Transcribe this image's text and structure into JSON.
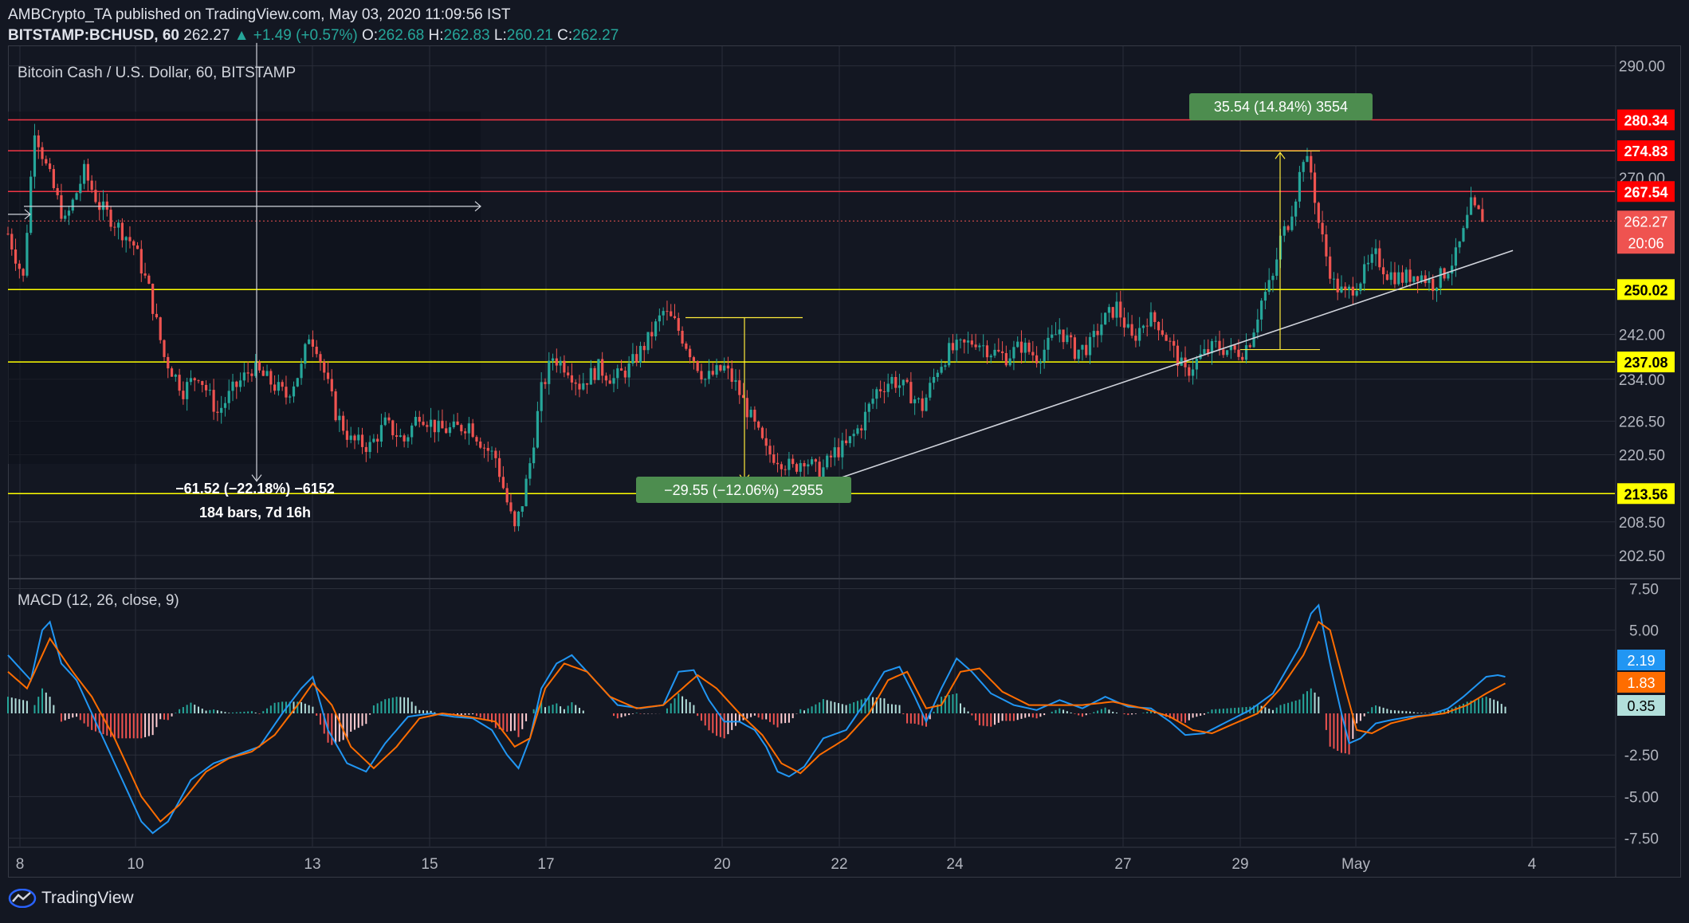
{
  "header": {
    "author": "AMBCrypto_TA",
    "published_text": "published on TradingView.com, May 03, 2020 11:09:56 IST",
    "symbol": "BITSTAMP:BCHUSD, 60",
    "last": "262.27",
    "change": "▲ +1.49 (+0.57%)",
    "o_label": "O:",
    "o_val": "262.68",
    "h_label": "H:",
    "h_val": "262.83",
    "l_label": "L:",
    "l_val": "260.21",
    "c_label": "C:",
    "c_val": "262.27"
  },
  "footer": {
    "brand": "TradingView"
  },
  "colors": {
    "background": "#131722",
    "up": "#26a69a",
    "down": "#ef5350",
    "resistance": "#f23645",
    "support": "#ffff00",
    "macd": "#2196f3",
    "signal": "#ff6d00",
    "measure_green": "#4d8d4f"
  },
  "chart_data": {
    "type": "candlestick",
    "title": "Bitcoin Cash / U.S. Dollar, 60, BITSTAMP",
    "price_axis": {
      "ticks": [
        "290.00",
        "274.83",
        "270.00",
        "250.02",
        "242.00",
        "234.00",
        "226.50",
        "220.50",
        "208.50",
        "202.50"
      ],
      "range": [
        198.5,
        293.5
      ]
    },
    "x_axis": {
      "ticks": [
        "8",
        "10",
        "13",
        "15",
        "17",
        "20",
        "22",
        "24",
        "27",
        "29",
        "May",
        "4"
      ]
    },
    "horizontal_levels": [
      {
        "value": 280.34,
        "label": "280.34",
        "kind": "resistance"
      },
      {
        "value": 274.83,
        "label": "274.83",
        "kind": "resistance"
      },
      {
        "value": 267.54,
        "label": "267.54",
        "kind": "resistance"
      },
      {
        "value": 250.02,
        "label": "250.02",
        "kind": "support"
      },
      {
        "value": 237.08,
        "label": "237.08",
        "kind": "support"
      },
      {
        "value": 213.56,
        "label": "213.56",
        "kind": "support"
      }
    ],
    "last_price": {
      "value": 262.27,
      "label": "262.27",
      "countdown": "20:06"
    },
    "close_series_approx": [
      [
        0,
        260
      ],
      [
        4,
        252
      ],
      [
        7,
        279
      ],
      [
        10,
        272
      ],
      [
        15,
        262
      ],
      [
        20,
        271
      ],
      [
        24,
        265
      ],
      [
        28,
        262
      ],
      [
        33,
        258
      ],
      [
        37,
        250
      ],
      [
        41,
        238
      ],
      [
        46,
        232
      ],
      [
        50,
        235
      ],
      [
        55,
        228
      ],
      [
        59,
        232
      ],
      [
        64,
        236
      ],
      [
        68,
        234
      ],
      [
        73,
        231
      ],
      [
        77,
        236
      ],
      [
        79,
        242
      ],
      [
        81,
        240
      ],
      [
        86,
        228
      ],
      [
        90,
        223
      ],
      [
        95,
        222
      ],
      [
        99,
        226
      ],
      [
        104,
        223
      ],
      [
        108,
        228
      ],
      [
        113,
        225
      ],
      [
        117,
        225
      ],
      [
        121,
        226
      ],
      [
        125,
        222
      ],
      [
        128,
        220
      ],
      [
        131,
        212
      ],
      [
        133,
        207
      ],
      [
        135,
        212
      ],
      [
        137,
        219
      ],
      [
        140,
        232
      ],
      [
        143,
        238
      ],
      [
        147,
        236
      ],
      [
        150,
        233
      ],
      [
        155,
        236
      ],
      [
        159,
        234
      ],
      [
        163,
        236
      ],
      [
        168,
        241
      ],
      [
        172,
        246
      ],
      [
        175,
        244
      ],
      [
        179,
        239
      ],
      [
        183,
        234
      ],
      [
        188,
        236
      ],
      [
        191,
        233
      ],
      [
        195,
        227
      ],
      [
        199,
        221
      ],
      [
        202,
        220
      ],
      [
        206,
        218
      ],
      [
        209,
        220
      ],
      [
        213,
        217
      ],
      [
        217,
        221
      ],
      [
        220,
        222
      ],
      [
        224,
        226
      ],
      [
        228,
        232
      ],
      [
        232,
        234
      ],
      [
        236,
        232
      ],
      [
        240,
        229
      ],
      [
        244,
        236
      ],
      [
        247,
        239
      ],
      [
        251,
        240
      ],
      [
        254,
        241
      ],
      [
        258,
        239
      ],
      [
        262,
        238
      ],
      [
        266,
        240
      ],
      [
        270,
        238
      ],
      [
        273,
        240
      ],
      [
        276,
        243
      ],
      [
        280,
        239
      ],
      [
        284,
        240
      ],
      [
        287,
        244
      ],
      [
        291,
        247
      ],
      [
        295,
        241
      ],
      [
        299,
        245
      ],
      [
        302,
        244
      ],
      [
        306,
        239
      ],
      [
        309,
        235
      ],
      [
        313,
        238
      ],
      [
        317,
        240
      ],
      [
        321,
        239
      ],
      [
        324,
        239
      ],
      [
        326,
        241
      ],
      [
        329,
        248
      ],
      [
        332,
        252
      ],
      [
        334,
        259
      ],
      [
        336,
        262
      ],
      [
        338,
        267
      ],
      [
        340,
        274
      ],
      [
        342,
        271
      ],
      [
        344,
        262
      ],
      [
        346,
        256
      ],
      [
        348,
        251
      ],
      [
        351,
        249
      ],
      [
        355,
        252
      ],
      [
        359,
        256
      ],
      [
        362,
        253
      ],
      [
        366,
        252
      ],
      [
        370,
        253
      ],
      [
        374,
        251
      ],
      [
        377,
        253
      ],
      [
        380,
        256
      ],
      [
        382,
        260
      ],
      [
        384,
        265
      ],
      [
        385,
        264
      ],
      [
        387,
        263
      ]
    ],
    "trend_line": {
      "from": [
        206,
        213.5
      ],
      "to": [
        395,
        257
      ]
    },
    "measurements": [
      {
        "label": "−61.52 (−22.18%) −6152",
        "sub": "184 bars, 7d 16h",
        "from": 277.0,
        "to": 215.5
      },
      {
        "label": "−29.55 (−12.06%) −2955",
        "from": 245.0,
        "to": 215.5
      },
      {
        "label": "35.54 (14.84%) 3554",
        "from": 239.3,
        "to": 274.8
      }
    ],
    "macd": {
      "title": "MACD (12, 26, close, 9)",
      "ticks": [
        "7.50",
        "5.00",
        "-2.50",
        "-5.00",
        "-7.50"
      ],
      "range": [
        -8.0,
        8.0
      ],
      "labels": {
        "macd": "2.19",
        "signal": "1.83",
        "hist": "0.35"
      },
      "macd_line": [
        [
          0,
          3.5
        ],
        [
          6,
          2
        ],
        [
          9,
          5
        ],
        [
          11,
          5.5
        ],
        [
          14,
          3
        ],
        [
          18,
          2
        ],
        [
          24,
          -1
        ],
        [
          30,
          -4
        ],
        [
          35,
          -6.5
        ],
        [
          38,
          -7.2
        ],
        [
          42,
          -6.5
        ],
        [
          48,
          -4
        ],
        [
          54,
          -3
        ],
        [
          60,
          -2.5
        ],
        [
          66,
          -2
        ],
        [
          72,
          0
        ],
        [
          77,
          1.5
        ],
        [
          80,
          2.2
        ],
        [
          84,
          -1
        ],
        [
          89,
          -3
        ],
        [
          94,
          -3.5
        ],
        [
          99,
          -1.8
        ],
        [
          105,
          -0.2
        ],
        [
          111,
          0
        ],
        [
          117,
          -0.2
        ],
        [
          122,
          -0.3
        ],
        [
          127,
          -1
        ],
        [
          131,
          -2.5
        ],
        [
          134,
          -3.3
        ],
        [
          137,
          -1.5
        ],
        [
          140,
          1.5
        ],
        [
          144,
          3
        ],
        [
          148,
          3.5
        ],
        [
          154,
          2
        ],
        [
          160,
          0.5
        ],
        [
          166,
          0.3
        ],
        [
          172,
          0.5
        ],
        [
          176,
          2.5
        ],
        [
          180,
          2.6
        ],
        [
          184,
          0.8
        ],
        [
          188,
          -0.5
        ],
        [
          192,
          -0.5
        ],
        [
          196,
          -1
        ],
        [
          199,
          -2
        ],
        [
          202,
          -3.5
        ],
        [
          205,
          -3.8
        ],
        [
          209,
          -3.2
        ],
        [
          214,
          -1.5
        ],
        [
          220,
          -1
        ],
        [
          226,
          1
        ],
        [
          230,
          2.5
        ],
        [
          234,
          2.8
        ],
        [
          238,
          1
        ],
        [
          241,
          -0.5
        ],
        [
          245,
          1.5
        ],
        [
          249,
          3.3
        ],
        [
          253,
          2.5
        ],
        [
          258,
          1.2
        ],
        [
          264,
          0.5
        ],
        [
          270,
          0.2
        ],
        [
          276,
          0.8
        ],
        [
          282,
          0.3
        ],
        [
          288,
          1
        ],
        [
          294,
          0.4
        ],
        [
          300,
          0.3
        ],
        [
          305,
          -0.5
        ],
        [
          309,
          -1.3
        ],
        [
          314,
          -1.2
        ],
        [
          320,
          -0.5
        ],
        [
          326,
          0.2
        ],
        [
          332,
          1.2
        ],
        [
          336,
          2.8
        ],
        [
          339,
          4
        ],
        [
          342,
          6
        ],
        [
          344,
          6.5
        ],
        [
          347,
          3
        ],
        [
          350,
          0
        ],
        [
          352,
          -1.8
        ],
        [
          355,
          -1.5
        ],
        [
          359,
          -0.6
        ],
        [
          363,
          -0.4
        ],
        [
          368,
          -0.2
        ],
        [
          373,
          -0.1
        ],
        [
          378,
          0.3
        ],
        [
          382,
          1
        ],
        [
          385,
          1.6
        ],
        [
          388,
          2.2
        ],
        [
          391,
          2.3
        ],
        [
          393,
          2.2
        ]
      ],
      "signal_line": [
        [
          0,
          2.5
        ],
        [
          5,
          1.5
        ],
        [
          11,
          4.5
        ],
        [
          17,
          2.5
        ],
        [
          22,
          1
        ],
        [
          28,
          -1.5
        ],
        [
          35,
          -5
        ],
        [
          40,
          -6.5
        ],
        [
          45,
          -5.5
        ],
        [
          52,
          -3.5
        ],
        [
          58,
          -2.7
        ],
        [
          64,
          -2.3
        ],
        [
          70,
          -1.3
        ],
        [
          76,
          0.5
        ],
        [
          80,
          1.8
        ],
        [
          85,
          0.5
        ],
        [
          90,
          -2
        ],
        [
          96,
          -3.3
        ],
        [
          102,
          -2
        ],
        [
          108,
          -0.3
        ],
        [
          114,
          0
        ],
        [
          121,
          -0.2
        ],
        [
          128,
          -0.5
        ],
        [
          133,
          -2
        ],
        [
          137,
          -1.5
        ],
        [
          141,
          1.5
        ],
        [
          146,
          3
        ],
        [
          152,
          2.5
        ],
        [
          158,
          1
        ],
        [
          165,
          0.3
        ],
        [
          172,
          0.5
        ],
        [
          177,
          1.5
        ],
        [
          181,
          2.3
        ],
        [
          186,
          1.5
        ],
        [
          192,
          0
        ],
        [
          198,
          -1.3
        ],
        [
          203,
          -3
        ],
        [
          208,
          -3.6
        ],
        [
          213,
          -2.5
        ],
        [
          220,
          -1.5
        ],
        [
          226,
          0
        ],
        [
          231,
          2
        ],
        [
          236,
          2.5
        ],
        [
          241,
          0.3
        ],
        [
          245,
          0.5
        ],
        [
          250,
          2.5
        ],
        [
          255,
          2.7
        ],
        [
          261,
          1.3
        ],
        [
          268,
          0.5
        ],
        [
          275,
          0.5
        ],
        [
          282,
          0.5
        ],
        [
          290,
          0.7
        ],
        [
          298,
          0.3
        ],
        [
          305,
          -0.2
        ],
        [
          311,
          -1
        ],
        [
          316,
          -1.2
        ],
        [
          322,
          -0.6
        ],
        [
          328,
          0
        ],
        [
          334,
          1.5
        ],
        [
          340,
          3.5
        ],
        [
          344,
          5.5
        ],
        [
          347,
          5
        ],
        [
          351,
          1.5
        ],
        [
          354,
          -1
        ],
        [
          358,
          -1.2
        ],
        [
          363,
          -0.6
        ],
        [
          370,
          -0.2
        ],
        [
          377,
          0
        ],
        [
          383,
          0.5
        ],
        [
          388,
          1.2
        ],
        [
          393,
          1.8
        ]
      ]
    }
  }
}
